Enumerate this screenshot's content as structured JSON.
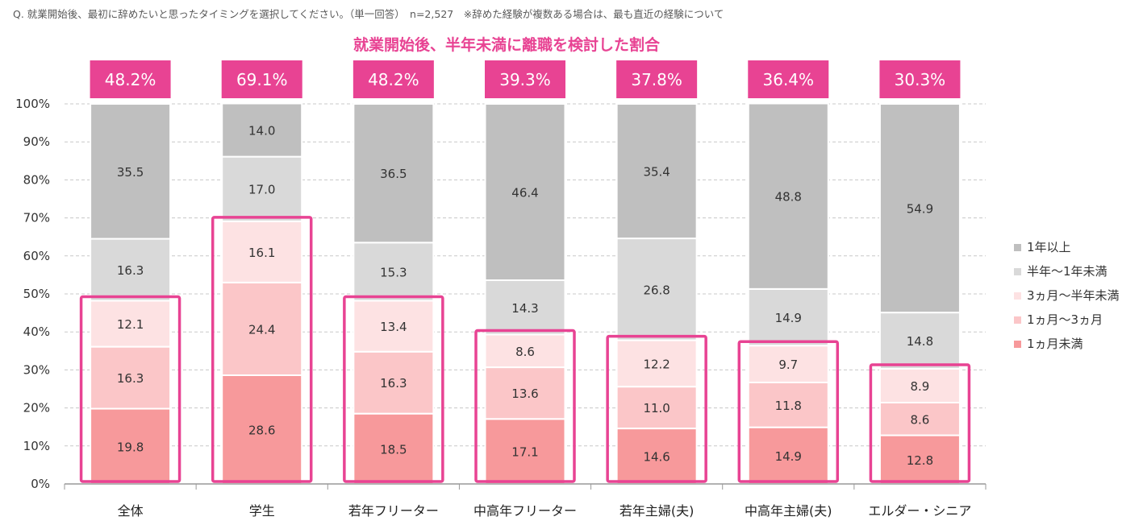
{
  "question": "Q. 就業開始後、最初に辞めたいと思ったタイミングを選択してください。（単一回答）　n=2,527　※辞めた経験が複数ある場合は、最も直近の経験について",
  "chart_data": {
    "type": "bar",
    "stacked": true,
    "title": "就業開始後、半年未満に離職を検討した割合",
    "xlabel": "",
    "ylabel": "",
    "ylim": [
      0,
      100
    ],
    "y_ticks": [
      "0%",
      "10%",
      "20%",
      "30%",
      "40%",
      "50%",
      "60%",
      "70%",
      "80%",
      "90%",
      "100%"
    ],
    "grid": "horizontal dashed",
    "legend_position": "right",
    "categories": [
      "全体",
      "学生",
      "若年フリーター",
      "中高年フリーター",
      "若年主婦(夫)",
      "中高年主婦(夫)",
      "エルダー・シニア"
    ],
    "series": [
      {
        "name": "1ヵ月未満",
        "color": "#f7999b",
        "values": [
          19.8,
          28.6,
          18.5,
          17.1,
          14.6,
          14.9,
          12.8
        ]
      },
      {
        "name": "1ヵ月〜3ヵ月",
        "color": "#fbc6c8",
        "values": [
          16.3,
          24.4,
          16.3,
          13.6,
          11.0,
          11.8,
          8.6
        ]
      },
      {
        "name": "3ヵ月〜半年未満",
        "color": "#fde2e3",
        "values": [
          12.1,
          16.1,
          13.4,
          8.6,
          12.2,
          9.7,
          8.9
        ]
      },
      {
        "name": "半年〜1年未満",
        "color": "#d9d9d9",
        "values": [
          16.3,
          17.0,
          15.3,
          14.3,
          26.8,
          14.9,
          14.8
        ]
      },
      {
        "name": "1年以上",
        "color": "#bfbfbf",
        "values": [
          35.5,
          14.0,
          36.5,
          46.4,
          35.4,
          48.8,
          54.9
        ]
      }
    ],
    "highlight_totals": [
      "48.2%",
      "69.1%",
      "48.2%",
      "39.3%",
      "37.8%",
      "36.4%",
      "30.3%"
    ],
    "highlight_color": "#e84393"
  }
}
